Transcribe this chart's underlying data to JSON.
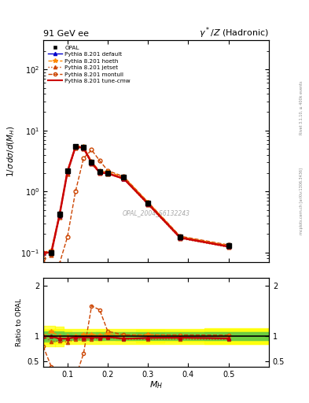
{
  "title_left": "91 GeV ee",
  "title_right": "$\\gamma^*/Z$ (Hadronic)",
  "ylabel_main": "$1/\\sigma\\,d\\sigma/d(M_H)$",
  "ylabel_ratio": "Ratio to OPAL",
  "xlabel": "$M_H$",
  "watermark": "OPAL_2004_S6132243",
  "right_label_top": "Rivet 3.1.10, ≥ 400k events",
  "right_label_bottom": "mcplots.cern.ch [arXiv:1306.3436]",
  "opal_x": [
    0.06,
    0.08,
    0.1,
    0.12,
    0.14,
    0.16,
    0.18,
    0.2,
    0.24,
    0.3,
    0.38,
    0.5
  ],
  "opal_y": [
    0.1,
    0.42,
    2.2,
    5.5,
    5.3,
    3.0,
    2.1,
    2.0,
    1.7,
    0.65,
    0.18,
    0.13
  ],
  "opal_yerr": [
    0.01,
    0.04,
    0.12,
    0.2,
    0.18,
    0.12,
    0.1,
    0.08,
    0.07,
    0.04,
    0.01,
    0.01
  ],
  "default_x": [
    0.04,
    0.06,
    0.08,
    0.1,
    0.12,
    0.14,
    0.16,
    0.18,
    0.2,
    0.24,
    0.3,
    0.38,
    0.5
  ],
  "default_y": [
    0.1,
    0.1,
    0.4,
    2.1,
    5.4,
    5.2,
    2.95,
    2.05,
    1.98,
    1.62,
    0.63,
    0.175,
    0.125
  ],
  "hoeth_x": [
    0.04,
    0.06,
    0.08,
    0.1,
    0.12,
    0.14,
    0.16,
    0.18,
    0.2,
    0.24,
    0.3,
    0.38,
    0.5
  ],
  "hoeth_y": [
    0.1,
    0.11,
    0.42,
    2.2,
    5.55,
    5.45,
    3.1,
    2.15,
    2.1,
    1.72,
    0.67,
    0.182,
    0.13
  ],
  "jetset_x": [
    0.04,
    0.06,
    0.08,
    0.1,
    0.12,
    0.14,
    0.16,
    0.18,
    0.2,
    0.24,
    0.3,
    0.38,
    0.5
  ],
  "jetset_y": [
    0.1,
    0.09,
    0.38,
    1.95,
    5.2,
    5.0,
    2.85,
    2.0,
    1.95,
    1.6,
    0.61,
    0.17,
    0.122
  ],
  "montull_x": [
    0.04,
    0.06,
    0.08,
    0.1,
    0.12,
    0.14,
    0.16,
    0.18,
    0.2,
    0.24,
    0.3,
    0.38,
    0.5
  ],
  "montull_y": [
    0.08,
    0.04,
    0.065,
    0.18,
    1.0,
    3.5,
    4.8,
    3.2,
    2.2,
    1.75,
    0.67,
    0.185,
    0.133
  ],
  "tunecmw_x": [
    0.04,
    0.06,
    0.08,
    0.1,
    0.12,
    0.14,
    0.16,
    0.18,
    0.2,
    0.24,
    0.3,
    0.38,
    0.5
  ],
  "tunecmw_y": [
    0.1,
    0.1,
    0.4,
    2.1,
    5.4,
    5.2,
    2.95,
    2.05,
    1.98,
    1.62,
    0.63,
    0.175,
    0.125
  ],
  "xlim": [
    0.04,
    0.6
  ],
  "ylim_main": [
    0.07,
    300
  ],
  "ylim_ratio": [
    0.4,
    2.15
  ],
  "colors": {
    "opal": "#000000",
    "default": "#0000cc",
    "hoeth": "#ff8800",
    "jetset": "#cc4400",
    "montull": "#cc4400",
    "tunecmw": "#cc0000"
  }
}
